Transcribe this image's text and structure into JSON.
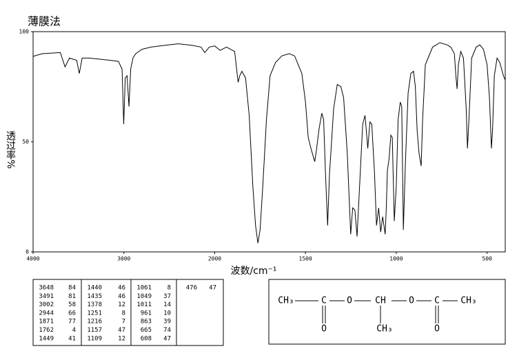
{
  "chart_data": {
    "type": "line",
    "title": "薄膜法",
    "ylabel": "透过率%",
    "xlabel": "波数/cm⁻¹",
    "xlim": [
      4000,
      400
    ],
    "xticks": [
      4000,
      3000,
      2000,
      1500,
      1000,
      500
    ],
    "ylim": [
      0,
      100
    ],
    "yticks": [
      0,
      50,
      100
    ],
    "color": "#000000",
    "x": [
      4000,
      3900,
      3700,
      3648,
      3600,
      3520,
      3491,
      3460,
      3380,
      3150,
      3060,
      3020,
      3002,
      2985,
      2965,
      2944,
      2925,
      2900,
      2870,
      2800,
      2700,
      2550,
      2400,
      2250,
      2150,
      2110,
      2060,
      2000,
      1970,
      1935,
      1890,
      1871,
      1862,
      1850,
      1830,
      1810,
      1790,
      1775,
      1762,
      1750,
      1735,
      1715,
      1695,
      1665,
      1630,
      1590,
      1560,
      1520,
      1500,
      1485,
      1470,
      1449,
      1440,
      1425,
      1410,
      1400,
      1390,
      1378,
      1368,
      1345,
      1325,
      1305,
      1290,
      1270,
      1251,
      1240,
      1228,
      1216,
      1205,
      1185,
      1172,
      1157,
      1145,
      1135,
      1120,
      1109,
      1097,
      1086,
      1075,
      1061,
      1055,
      1049,
      1040,
      1030,
      1022,
      1011,
      1000,
      990,
      978,
      970,
      961,
      950,
      935,
      920,
      905,
      895,
      885,
      875,
      863,
      855,
      840,
      800,
      760,
      720,
      700,
      680,
      672,
      665,
      658,
      645,
      630,
      615,
      608,
      600,
      585,
      560,
      540,
      520,
      500,
      487,
      476,
      470,
      460,
      445,
      430,
      410,
      400
    ],
    "values": [
      88.8,
      90,
      90.5,
      84,
      88,
      87,
      81,
      88,
      88,
      87,
      86.5,
      83,
      58,
      79,
      80,
      66,
      83,
      88,
      90,
      92,
      93,
      93.8,
      94.5,
      93.8,
      93,
      90.5,
      93,
      93.5,
      91.5,
      93,
      91,
      77,
      80,
      82,
      79,
      62,
      30,
      12,
      4,
      10,
      30,
      60,
      80,
      86,
      89,
      90,
      89,
      81,
      68,
      52,
      47,
      41,
      46,
      56,
      63,
      60,
      36,
      12,
      35,
      65,
      76,
      75,
      70,
      45,
      8,
      20,
      19,
      7,
      25,
      58,
      62,
      47,
      59,
      58,
      36,
      12,
      20,
      9,
      16,
      8,
      20,
      37,
      42,
      53,
      52,
      14,
      30,
      60,
      68,
      66,
      10,
      40,
      72,
      81,
      82,
      75,
      55,
      45,
      39,
      60,
      85,
      93,
      95,
      94,
      93,
      90,
      80,
      74,
      85,
      91,
      88,
      65,
      47,
      60,
      88,
      93,
      94,
      92,
      85,
      70,
      47,
      55,
      80,
      88,
      86,
      80,
      78
    ]
  },
  "peak_table": [
    [
      [
        3648,
        84
      ],
      [
        3491,
        81
      ],
      [
        3002,
        58
      ],
      [
        2944,
        66
      ],
      [
        1871,
        77
      ],
      [
        1762,
        4
      ],
      [
        1449,
        41
      ]
    ],
    [
      [
        1440,
        46
      ],
      [
        1435,
        46
      ],
      [
        1378,
        12
      ],
      [
        1251,
        8
      ],
      [
        1216,
        7
      ],
      [
        1157,
        47
      ],
      [
        1109,
        12
      ]
    ],
    [
      [
        1061,
        8
      ],
      [
        1049,
        37
      ],
      [
        1011,
        14
      ],
      [
        961,
        10
      ],
      [
        863,
        39
      ],
      [
        665,
        74
      ],
      [
        608,
        47
      ]
    ],
    [
      [
        476,
        47
      ]
    ]
  ],
  "structure": {
    "groups": [
      "CH₃",
      "C",
      "O",
      "CH",
      "O",
      "C",
      "CH₃",
      "O",
      "CH₃",
      "O"
    ]
  }
}
